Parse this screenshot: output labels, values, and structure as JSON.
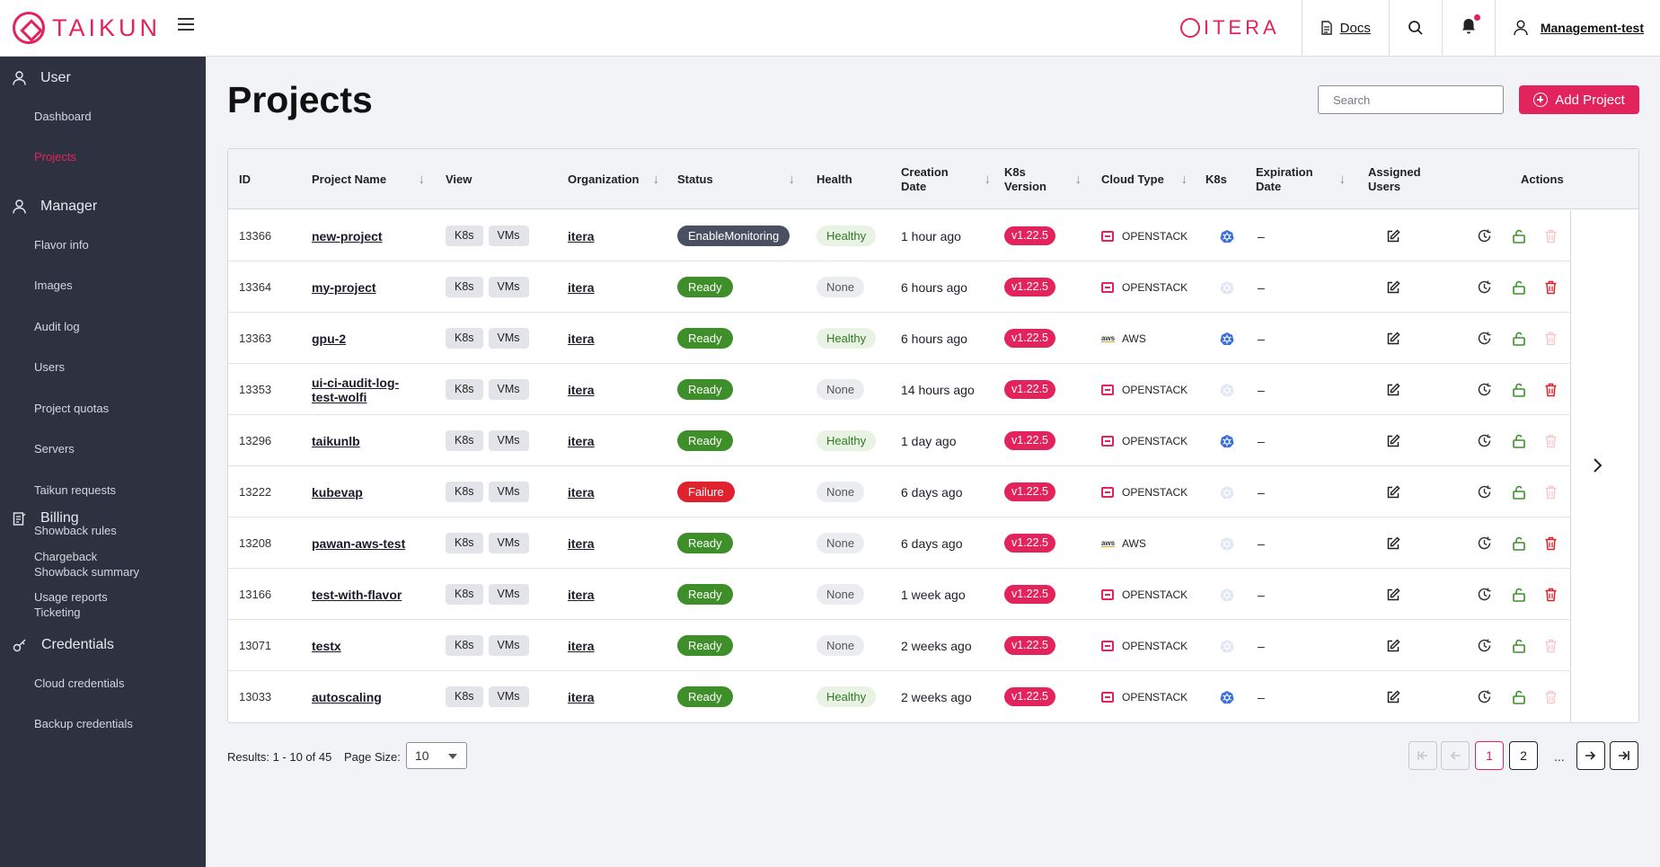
{
  "topbar": {
    "brand": "TAIKUN",
    "partner": "ITERA",
    "docs_label": "Docs",
    "user_label": "Management-test"
  },
  "sidebar": {
    "sections": [
      {
        "title": "User",
        "icon": "user-icon",
        "items": [
          {
            "label": "Dashboard"
          },
          {
            "label": "Projects",
            "active": true
          }
        ]
      },
      {
        "title": "Manager",
        "icon": "user-icon",
        "items": [
          {
            "label": "Flavor info"
          },
          {
            "label": "Images"
          },
          {
            "label": "Audit log"
          },
          {
            "label": "Users"
          },
          {
            "label": "Project quotas"
          },
          {
            "label": "Servers"
          },
          {
            "label": "Taikun requests"
          },
          {
            "label": "Showback rules"
          },
          {
            "label": "Showback summary"
          },
          {
            "label": "Ticketing"
          }
        ]
      },
      {
        "title": "Billing",
        "icon": "billing-icon",
        "items": [
          {
            "label": "Chargeback"
          },
          {
            "label": "Usage reports"
          }
        ]
      },
      {
        "title": "Credentials",
        "icon": "key-icon",
        "items": [
          {
            "label": "Cloud credentials"
          },
          {
            "label": "Backup credentials"
          }
        ]
      }
    ]
  },
  "page": {
    "title": "Projects",
    "search_placeholder": "Search",
    "add_button": "Add Project"
  },
  "table": {
    "headers": {
      "id": "ID",
      "name": "Project Name",
      "view": "View",
      "org": "Organization",
      "status": "Status",
      "health": "Health",
      "created_1": "Creation",
      "created_2": "Date",
      "k8sver_1": "K8s",
      "k8sver_2": "Version",
      "cloud": "Cloud Type",
      "k8s": "K8s",
      "expiry_1": "Expiration",
      "expiry_2": "Date",
      "users_1": "Assigned",
      "users_2": "Users",
      "actions": "Actions"
    },
    "view_chips": [
      "K8s",
      "VMs"
    ],
    "rows": [
      {
        "id": "13366",
        "name": [
          "new-project"
        ],
        "org": "itera",
        "status": "EnableMonitoring",
        "health": "Healthy",
        "created": "1 hour ago",
        "version": "v1.22.5",
        "cloud": "OPENSTACK",
        "k8s_active": true,
        "expiration": "–",
        "delete_enabled": false
      },
      {
        "id": "13364",
        "name": [
          "my-project"
        ],
        "org": "itera",
        "status": "Ready",
        "health": "None",
        "created": "6 hours ago",
        "version": "v1.22.5",
        "cloud": "OPENSTACK",
        "k8s_active": false,
        "expiration": "–",
        "delete_enabled": true
      },
      {
        "id": "13363",
        "name": [
          "gpu-2"
        ],
        "org": "itera",
        "status": "Ready",
        "health": "Healthy",
        "created": "6 hours ago",
        "version": "v1.22.5",
        "cloud": "AWS",
        "k8s_active": true,
        "expiration": "–",
        "delete_enabled": false
      },
      {
        "id": "13353",
        "name": [
          "ui-ci-audit-log-",
          "test-wolfi"
        ],
        "org": "itera",
        "status": "Ready",
        "health": "None",
        "created": "14 hours ago",
        "version": "v1.22.5",
        "cloud": "OPENSTACK",
        "k8s_active": false,
        "expiration": "–",
        "delete_enabled": true
      },
      {
        "id": "13296",
        "name": [
          "taikunlb"
        ],
        "org": "itera",
        "status": "Ready",
        "health": "Healthy",
        "created": "1 day ago",
        "version": "v1.22.5",
        "cloud": "OPENSTACK",
        "k8s_active": true,
        "expiration": "–",
        "delete_enabled": false
      },
      {
        "id": "13222",
        "name": [
          "kubevap"
        ],
        "org": "itera",
        "status": "Failure",
        "health": "None",
        "created": "6 days ago",
        "version": "v1.22.5",
        "cloud": "OPENSTACK",
        "k8s_active": false,
        "expiration": "–",
        "delete_enabled": false
      },
      {
        "id": "13208",
        "name": [
          "pawan-aws-test"
        ],
        "org": "itera",
        "status": "Ready",
        "health": "None",
        "created": "6 days ago",
        "version": "v1.22.5",
        "cloud": "AWS",
        "k8s_active": false,
        "expiration": "–",
        "delete_enabled": true
      },
      {
        "id": "13166",
        "name": [
          "test-with-flavor"
        ],
        "org": "itera",
        "status": "Ready",
        "health": "None",
        "created": "1 week ago",
        "version": "v1.22.5",
        "cloud": "OPENSTACK",
        "k8s_active": false,
        "expiration": "–",
        "delete_enabled": true
      },
      {
        "id": "13071",
        "name": [
          "testx"
        ],
        "org": "itera",
        "status": "Ready",
        "health": "None",
        "created": "2 weeks ago",
        "version": "v1.22.5",
        "cloud": "OPENSTACK",
        "k8s_active": false,
        "expiration": "–",
        "delete_enabled": false
      },
      {
        "id": "13033",
        "name": [
          "autoscaling"
        ],
        "org": "itera",
        "status": "Ready",
        "health": "Healthy",
        "created": "2 weeks ago",
        "version": "v1.22.5",
        "cloud": "OPENSTACK",
        "k8s_active": true,
        "expiration": "–",
        "delete_enabled": false
      }
    ]
  },
  "footer": {
    "results": "Results: 1 - 10 of 45",
    "page_size_label": "Page Size:",
    "page_size": "10",
    "pages": [
      "1",
      "2"
    ],
    "current_page": "1",
    "ellipsis": "..."
  },
  "colors": {
    "accent": "#e3235b",
    "sidebar_bg": "#2e3240",
    "ready": "#3e8e2a",
    "failure": "#e0222e",
    "monitoring": "#4a4f61"
  }
}
